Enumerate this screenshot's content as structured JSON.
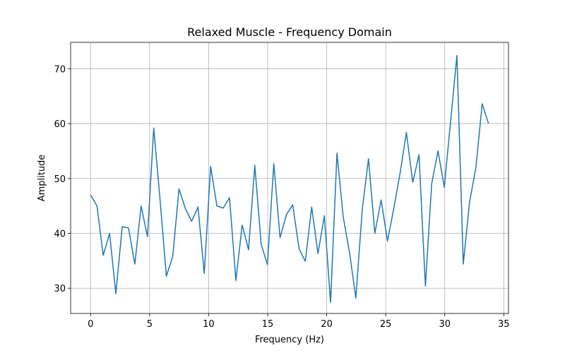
{
  "chart_data": {
    "type": "line",
    "title": "Relaxed Muscle - Frequency Domain",
    "xlabel": "Frequency (Hz)",
    "ylabel": "Amplitude",
    "x": [
      0,
      0.54,
      1.07,
      1.61,
      2.14,
      2.68,
      3.21,
      3.75,
      4.28,
      4.82,
      5.35,
      5.89,
      6.42,
      6.96,
      7.49,
      8.03,
      8.56,
      9.1,
      9.63,
      10.17,
      10.7,
      11.24,
      11.77,
      12.31,
      12.84,
      13.38,
      13.91,
      14.45,
      14.98,
      15.52,
      16.05,
      16.59,
      17.12,
      17.66,
      18.19,
      18.73,
      19.26,
      19.8,
      20.33,
      20.87,
      21.4,
      21.94,
      22.47,
      23.01,
      23.54,
      24.08,
      24.61,
      25.15,
      25.68,
      26.22,
      26.75,
      27.29,
      27.82,
      28.36,
      28.89,
      29.43,
      29.96,
      30.5,
      31.03,
      31.57,
      32.1,
      32.64,
      33.17,
      33.71
    ],
    "series": [
      {
        "name": "Amplitude",
        "color": "#1f77b4",
        "values": [
          47,
          45,
          36,
          40,
          29,
          41.2,
          41,
          34.4,
          45,
          39.4,
          59.2,
          46,
          32.2,
          35.8,
          48.1,
          44.5,
          42.2,
          44.8,
          32.7,
          52.2,
          45,
          44.6,
          46.5,
          31.4,
          41.5,
          37,
          52.4,
          38,
          34.3,
          52.7,
          39.2,
          43.4,
          45.2,
          37.2,
          34.9,
          44.8,
          36.3,
          43.2,
          27.4,
          54.6,
          43,
          36.4,
          28.2,
          44.3,
          53.6,
          40,
          46.1,
          38.6,
          44.5,
          51,
          58.4,
          49.3,
          54.3,
          30.4,
          49,
          55,
          48.4,
          60.5,
          72.4,
          34.4,
          45.7,
          52,
          63.6,
          60
        ]
      }
    ],
    "xlim": [
      -1.69,
      35.4
    ],
    "ylim": [
      25.4,
      74.8
    ],
    "xticks": [
      0,
      5,
      10,
      15,
      20,
      25,
      30,
      35
    ],
    "yticks": [
      30,
      40,
      50,
      60,
      70
    ],
    "grid": true
  }
}
